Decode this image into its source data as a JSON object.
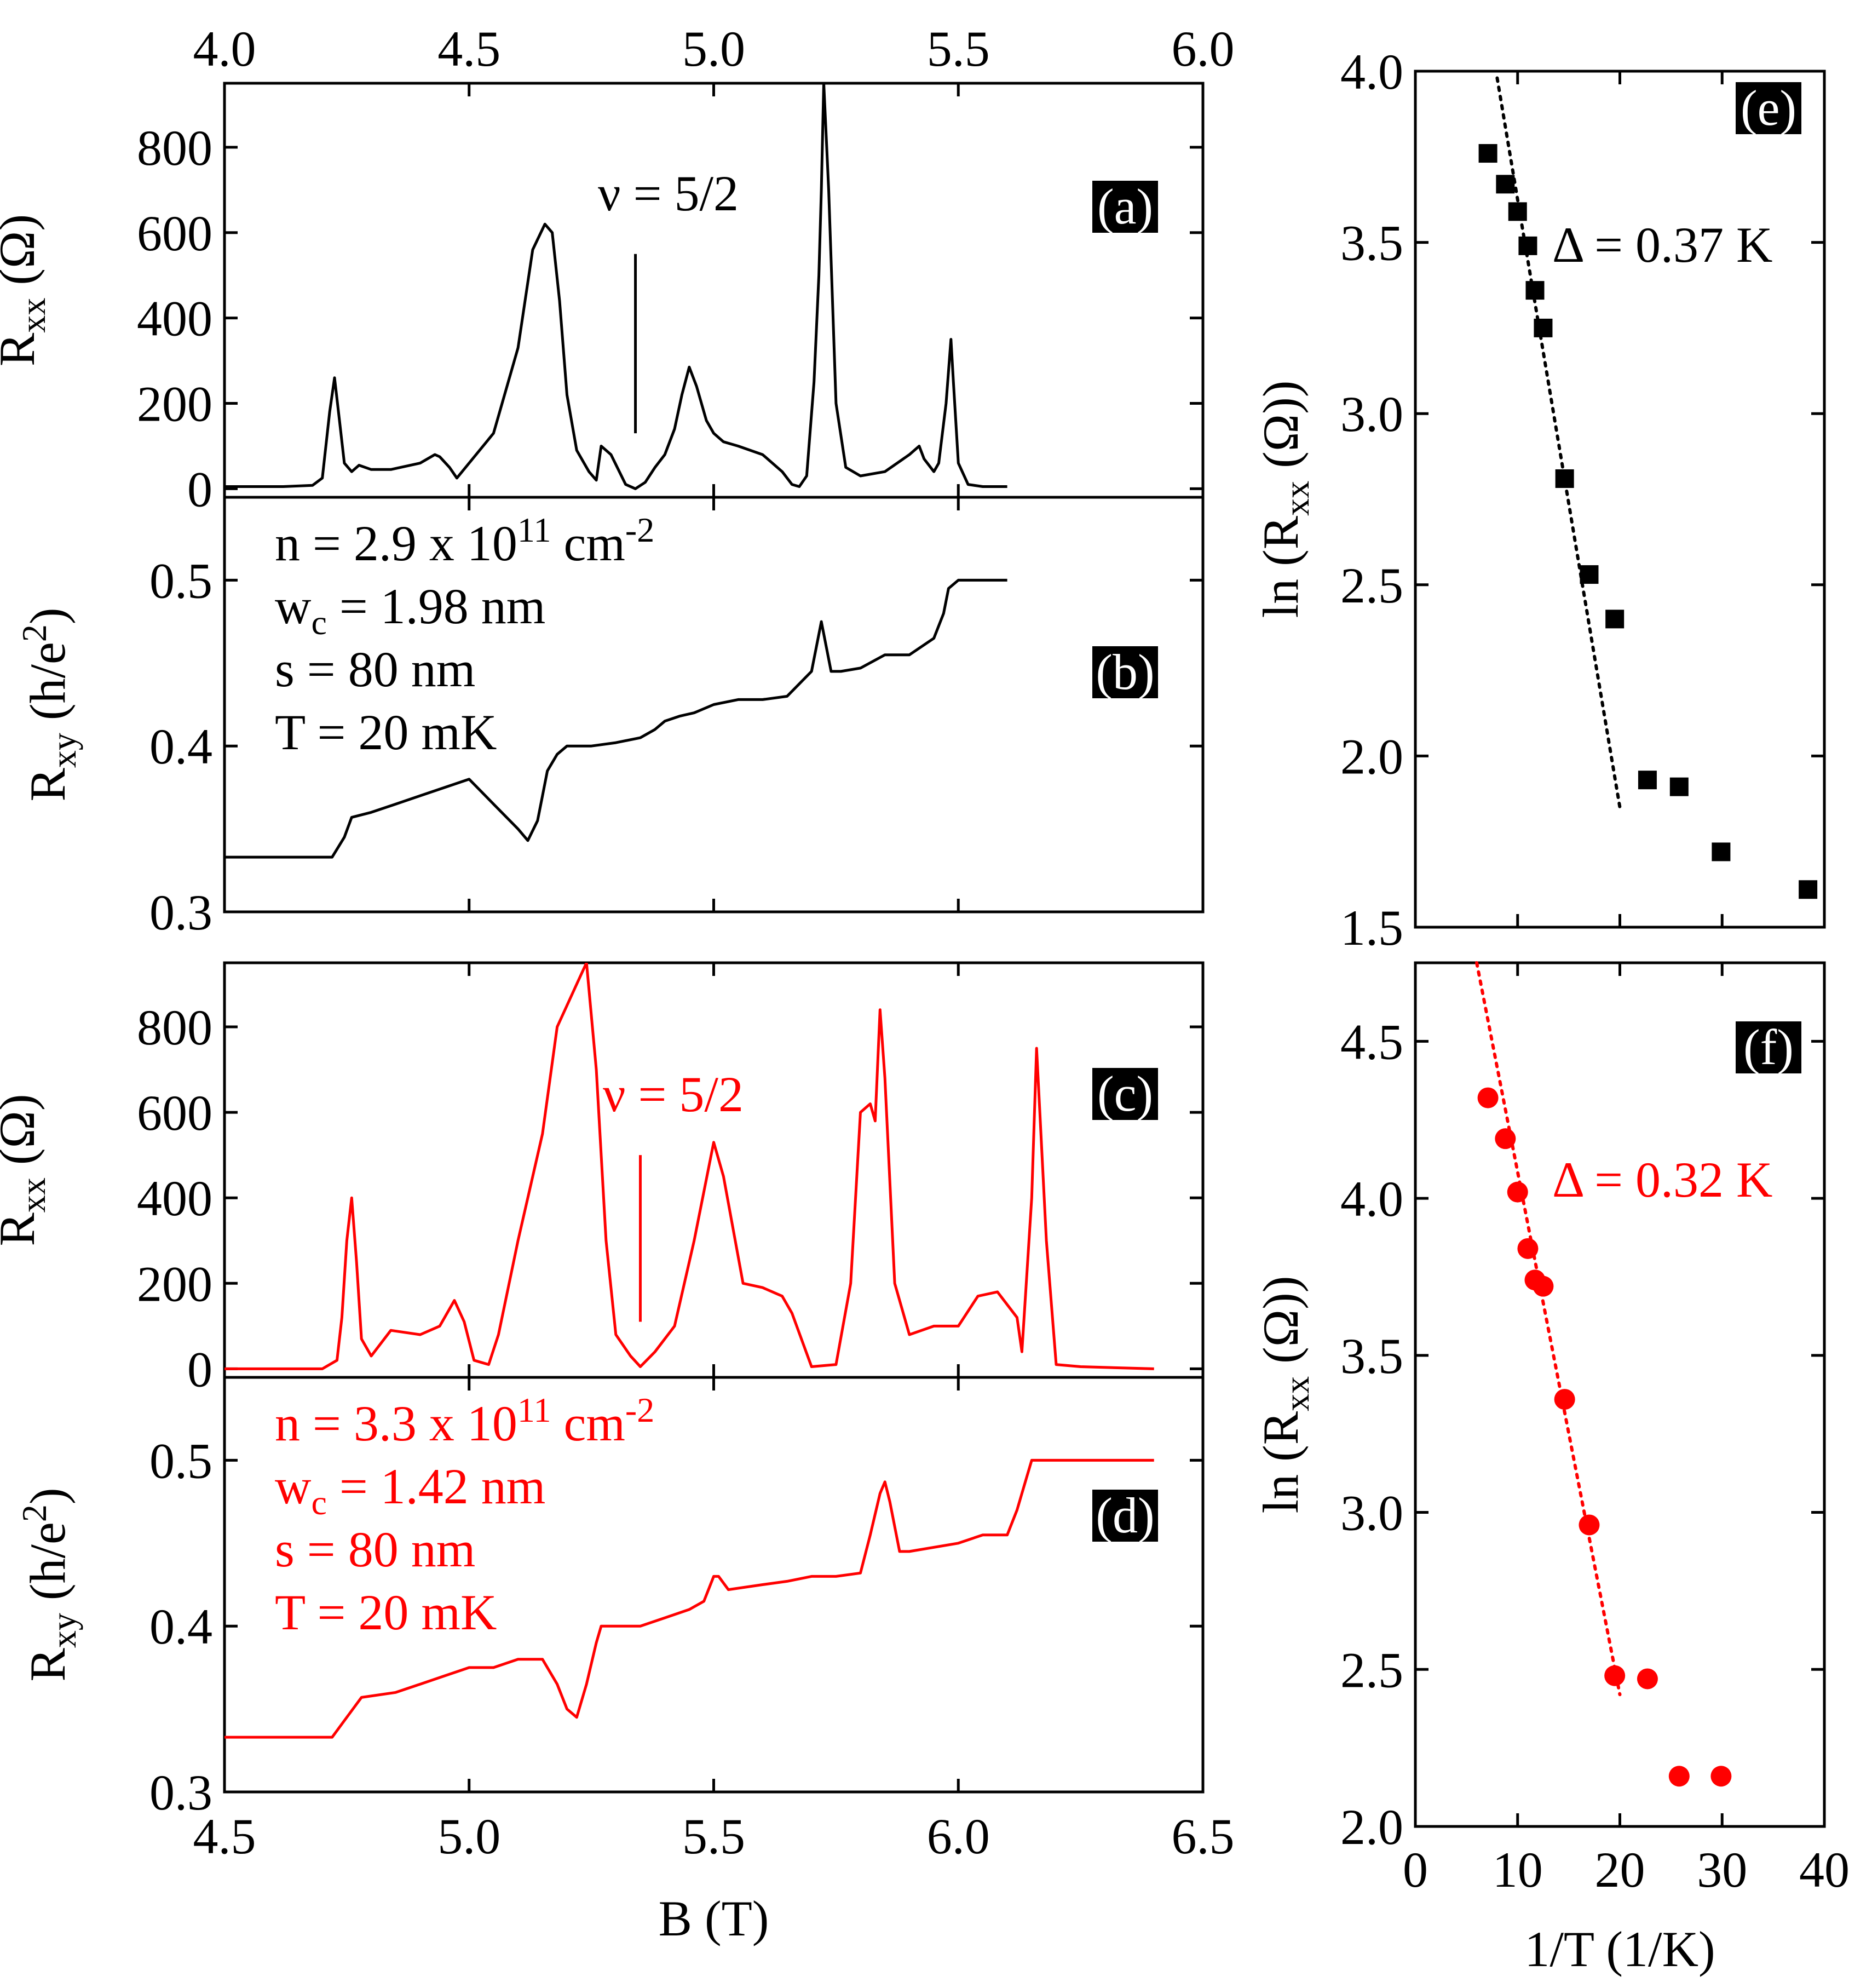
{
  "colors": {
    "black": "#000000",
    "red": "#ff0000",
    "label_bg": "#000000",
    "label_fg": "#ffffff"
  },
  "top_axis": {
    "ticks": [
      4.0,
      4.5,
      5.0,
      5.5,
      6.0
    ],
    "tick_labels": [
      "4.0",
      "4.5",
      "5.0",
      "5.5",
      "6.0"
    ],
    "range": [
      4.0,
      6.0
    ]
  },
  "bottom_axis": {
    "label": "B (T)",
    "ticks": [
      4.5,
      5.0,
      5.5,
      6.0,
      6.5
    ],
    "tick_labels": [
      "4.5",
      "5.0",
      "5.5",
      "6.0",
      "6.5"
    ],
    "range": [
      4.5,
      6.5
    ]
  },
  "chart_data": [
    {
      "panel": "(a)",
      "type": "line",
      "ylabel": "R",
      "ylabel_sub": "xx",
      "ylabel_unit": "(Ω)",
      "x_axis": "top",
      "xlim": [
        4.0,
        6.0
      ],
      "ylim": [
        -20,
        950
      ],
      "yticks": [
        0,
        200,
        400,
        600,
        800
      ],
      "ytick_labels": [
        "0",
        "200",
        "400",
        "600",
        "800"
      ],
      "annotation": {
        "text": "ν = 5/2",
        "x": 4.84,
        "line_from": 130,
        "line_to": 550
      },
      "series": [
        {
          "name": "Rxx",
          "color": "#000000",
          "x": [
            4.0,
            4.12,
            4.18,
            4.2,
            4.215,
            4.225,
            4.235,
            4.245,
            4.26,
            4.275,
            4.3,
            4.34,
            4.4,
            4.43,
            4.44,
            4.46,
            4.475,
            4.5,
            4.55,
            4.6,
            4.63,
            4.655,
            4.67,
            4.685,
            4.7,
            4.72,
            4.745,
            4.76,
            4.77,
            4.79,
            4.82,
            4.84,
            4.86,
            4.88,
            4.9,
            4.92,
            4.935,
            4.95,
            4.965,
            4.985,
            5.0,
            5.02,
            5.05,
            5.1,
            5.14,
            5.16,
            5.175,
            5.19,
            5.205,
            5.215,
            5.22,
            5.225,
            5.235,
            5.25,
            5.27,
            5.3,
            5.35,
            5.4,
            5.42,
            5.43,
            5.45,
            5.46,
            5.475,
            5.485,
            5.49,
            5.5,
            5.52,
            5.55,
            5.6
          ],
          "y": [
            5,
            5,
            8,
            25,
            180,
            260,
            160,
            60,
            40,
            55,
            45,
            45,
            60,
            80,
            75,
            50,
            25,
            60,
            130,
            330,
            560,
            620,
            600,
            440,
            220,
            90,
            40,
            20,
            100,
            80,
            10,
            0,
            15,
            50,
            80,
            140,
            220,
            285,
            240,
            160,
            130,
            110,
            100,
            80,
            40,
            10,
            5,
            30,
            250,
            500,
            700,
            950,
            700,
            200,
            50,
            30,
            40,
            80,
            100,
            70,
            40,
            60,
            200,
            350,
            250,
            60,
            10,
            5,
            5
          ]
        }
      ]
    },
    {
      "panel": "(b)",
      "type": "line",
      "ylabel": "R",
      "ylabel_sub": "xy",
      "ylabel_unit": "(h/e",
      "ylabel_sup": "2",
      "ylabel_close": ")",
      "xlim": [
        4.0,
        6.0
      ],
      "ylim": [
        0.3,
        0.55
      ],
      "yticks": [
        0.3,
        0.4,
        0.5
      ],
      "ytick_labels": [
        "0.3",
        "0.4",
        "0.5"
      ],
      "params": [
        "n = 2.9 x 10",
        "11",
        " cm",
        "-2",
        "w",
        "c",
        " = 1.98 nm",
        "s = 80 nm",
        "T = 20 mK"
      ],
      "series": [
        {
          "name": "Rxy",
          "color": "#000000",
          "x": [
            4.0,
            4.22,
            4.245,
            4.26,
            4.3,
            4.35,
            4.4,
            4.45,
            4.5,
            4.55,
            4.6,
            4.62,
            4.64,
            4.65,
            4.66,
            4.68,
            4.7,
            4.75,
            4.8,
            4.85,
            4.88,
            4.9,
            4.93,
            4.96,
            5.0,
            5.05,
            5.1,
            5.15,
            5.2,
            5.22,
            5.23,
            5.24,
            5.26,
            5.3,
            5.35,
            5.4,
            5.45,
            5.47,
            5.48,
            5.5,
            5.6
          ],
          "y": [
            0.333,
            0.333,
            0.345,
            0.357,
            0.36,
            0.365,
            0.37,
            0.375,
            0.38,
            0.365,
            0.35,
            0.343,
            0.355,
            0.37,
            0.385,
            0.395,
            0.4,
            0.4,
            0.402,
            0.405,
            0.41,
            0.415,
            0.418,
            0.42,
            0.425,
            0.428,
            0.428,
            0.43,
            0.445,
            0.475,
            0.46,
            0.445,
            0.445,
            0.447,
            0.455,
            0.455,
            0.465,
            0.48,
            0.495,
            0.5,
            0.5
          ]
        }
      ]
    },
    {
      "panel": "(c)",
      "type": "line",
      "ylabel": "R",
      "ylabel_sub": "xx",
      "ylabel_unit": "(Ω)",
      "xlim": [
        4.5,
        6.5
      ],
      "ylim": [
        -20,
        950
      ],
      "yticks": [
        0,
        200,
        400,
        600,
        800
      ],
      "ytick_labels": [
        "0",
        "200",
        "400",
        "600",
        "800"
      ],
      "annotation": {
        "text": "ν = 5/2",
        "x": 5.35,
        "line_from": 110,
        "line_to": 500
      },
      "series": [
        {
          "name": "Rxx",
          "color": "#ff0000",
          "x": [
            4.5,
            4.7,
            4.73,
            4.74,
            4.75,
            4.76,
            4.77,
            4.78,
            4.8,
            4.84,
            4.9,
            4.94,
            4.97,
            4.99,
            5.01,
            5.04,
            5.06,
            5.1,
            5.15,
            5.18,
            5.2,
            5.22,
            5.24,
            5.26,
            5.28,
            5.3,
            5.33,
            5.35,
            5.38,
            5.42,
            5.46,
            5.5,
            5.52,
            5.56,
            5.6,
            5.64,
            5.66,
            5.7,
            5.75,
            5.78,
            5.8,
            5.82,
            5.83,
            5.84,
            5.85,
            5.87,
            5.9,
            5.95,
            6.0,
            6.04,
            6.08,
            6.12,
            6.13,
            6.15,
            6.16,
            6.18,
            6.2,
            6.25,
            6.4
          ],
          "y": [
            0,
            0,
            20,
            120,
            300,
            400,
            250,
            70,
            30,
            90,
            80,
            100,
            160,
            110,
            20,
            10,
            80,
            300,
            550,
            800,
            850,
            900,
            950,
            700,
            300,
            80,
            30,
            5,
            40,
            100,
            300,
            530,
            450,
            200,
            190,
            170,
            130,
            5,
            10,
            200,
            600,
            620,
            580,
            840,
            680,
            200,
            80,
            100,
            100,
            170,
            180,
            120,
            40,
            400,
            750,
            300,
            10,
            5,
            0
          ]
        }
      ]
    },
    {
      "panel": "(d)",
      "type": "line",
      "ylabel": "R",
      "ylabel_sub": "xy",
      "ylabel_unit": "(h/e",
      "ylabel_sup": "2",
      "ylabel_close": ")",
      "x_axis": "bottom",
      "xlim": [
        4.5,
        6.5
      ],
      "ylim": [
        0.3,
        0.55
      ],
      "yticks": [
        0.3,
        0.4,
        0.5
      ],
      "ytick_labels": [
        "0.3",
        "0.4",
        "0.5"
      ],
      "params": [
        "n = 3.3 x 10",
        "11",
        " cm",
        "-2",
        "w",
        "c",
        " = 1.42 nm",
        "s = 80 nm",
        "T = 20 mK"
      ],
      "series": [
        {
          "name": "Rxy",
          "color": "#ff0000",
          "x": [
            4.5,
            4.72,
            4.75,
            4.78,
            4.85,
            4.9,
            4.95,
            5.0,
            5.05,
            5.1,
            5.15,
            5.18,
            5.2,
            5.22,
            5.24,
            5.26,
            5.27,
            5.3,
            5.35,
            5.4,
            5.45,
            5.48,
            5.5,
            5.51,
            5.53,
            5.6,
            5.65,
            5.7,
            5.75,
            5.8,
            5.82,
            5.84,
            5.85,
            5.86,
            5.88,
            5.9,
            6.0,
            6.05,
            6.1,
            6.12,
            6.14,
            6.15,
            6.2,
            6.4
          ],
          "y": [
            0.333,
            0.333,
            0.345,
            0.357,
            0.36,
            0.365,
            0.37,
            0.375,
            0.375,
            0.38,
            0.38,
            0.365,
            0.35,
            0.345,
            0.365,
            0.39,
            0.4,
            0.4,
            0.4,
            0.405,
            0.41,
            0.415,
            0.43,
            0.43,
            0.422,
            0.425,
            0.427,
            0.43,
            0.43,
            0.432,
            0.455,
            0.48,
            0.487,
            0.475,
            0.445,
            0.445,
            0.45,
            0.455,
            0.455,
            0.47,
            0.49,
            0.5,
            0.5,
            0.5
          ]
        }
      ]
    },
    {
      "panel": "(e)",
      "type": "scatter",
      "ylabel": "ln (R",
      "ylabel_sub": "xx",
      "ylabel_unit": "(Ω))",
      "xlim": [
        0,
        40
      ],
      "ylim": [
        1.5,
        4.0
      ],
      "yticks": [
        1.5,
        2.0,
        2.5,
        3.0,
        3.5,
        4.0
      ],
      "ytick_labels": [
        "1.5",
        "2.0",
        "2.5",
        "3.0",
        "3.5",
        "4.0"
      ],
      "marker": "square",
      "color": "#000000",
      "x": [
        7.1,
        8.8,
        10.0,
        11.0,
        11.7,
        12.5,
        14.6,
        17.0,
        19.5,
        22.7,
        25.8,
        29.9,
        38.4
      ],
      "y": [
        3.76,
        3.67,
        3.59,
        3.49,
        3.36,
        3.25,
        2.81,
        2.53,
        2.4,
        1.93,
        1.91,
        1.72,
        1.61
      ],
      "fit": {
        "x": [
          8.0,
          20.0
        ],
        "y": [
          3.98,
          1.85
        ]
      },
      "gap_label": "Δ = 0.37 K"
    },
    {
      "panel": "(f)",
      "type": "scatter",
      "ylabel": "ln (R",
      "ylabel_sub": "xx",
      "ylabel_unit": "(Ω))",
      "xlabel": "1/T (1/K)",
      "xlim": [
        0,
        40
      ],
      "ylim": [
        2.0,
        4.75
      ],
      "yticks": [
        2.0,
        2.5,
        3.0,
        3.5,
        4.0,
        4.5
      ],
      "ytick_labels": [
        "2.0",
        "2.5",
        "3.0",
        "3.5",
        "4.0",
        "4.5"
      ],
      "xticks": [
        0,
        10,
        20,
        30,
        40
      ],
      "xtick_labels": [
        "0",
        "10",
        "20",
        "30",
        "40"
      ],
      "marker": "circle",
      "color": "#ff0000",
      "x": [
        7.1,
        8.8,
        10.0,
        11.0,
        11.7,
        12.5,
        14.6,
        17.0,
        19.5,
        22.7,
        25.8,
        29.9
      ],
      "y": [
        4.32,
        4.19,
        4.02,
        3.84,
        3.74,
        3.72,
        3.36,
        2.96,
        2.48,
        2.47,
        2.16,
        2.16
      ],
      "fit": {
        "x": [
          6.0,
          20.0
        ],
        "y": [
          4.75,
          2.42
        ]
      },
      "gap_label": "Δ = 0.32 K"
    }
  ]
}
